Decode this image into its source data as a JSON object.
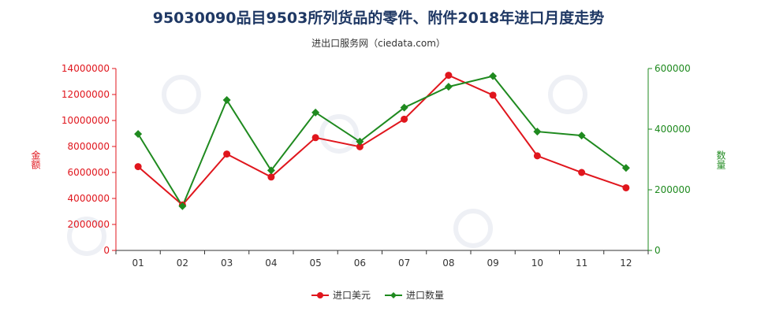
{
  "chart_data": {
    "type": "line",
    "title": "95030090品目9503所列货品的零件、附件2018年进口月度走势",
    "subtitle": "进出口服务网（ciedata.com）",
    "categories": [
      "01",
      "02",
      "03",
      "04",
      "05",
      "06",
      "07",
      "08",
      "09",
      "10",
      "11",
      "12"
    ],
    "y_left": {
      "label": "金额",
      "ylim": [
        0,
        14000000
      ],
      "ticks": [
        "0",
        "2000000",
        "4000000",
        "6000000",
        "8000000",
        "10000000",
        "12000000",
        "14000000"
      ],
      "color": "#e0161d"
    },
    "y_right": {
      "label": "数量",
      "ylim": [
        0,
        600000
      ],
      "ticks": [
        "0",
        "200000",
        "400000",
        "600000"
      ],
      "color": "#1f8a1f"
    },
    "series": [
      {
        "name": "进口美元",
        "axis": "left",
        "color": "#e0161d",
        "values": [
          6450000,
          3500000,
          7420000,
          5650000,
          8680000,
          7980000,
          10100000,
          13480000,
          11950000,
          7280000,
          6000000,
          4820000
        ]
      },
      {
        "name": "进口数量",
        "axis": "right",
        "color": "#1f8a1f",
        "values": [
          384000,
          146000,
          496000,
          264000,
          455000,
          359000,
          471000,
          540000,
          575000,
          392000,
          379000,
          272000
        ]
      }
    ],
    "legend_position": "bottom",
    "grid": false
  }
}
